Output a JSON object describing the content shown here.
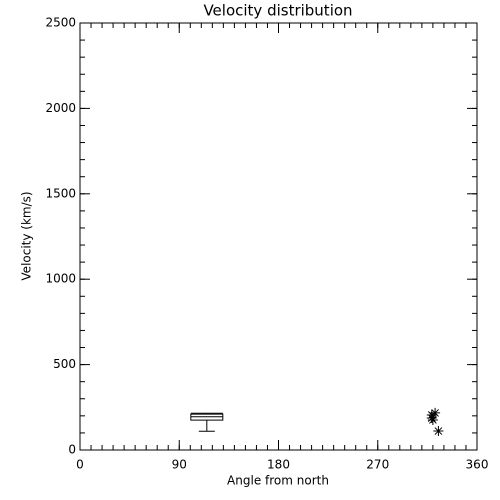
{
  "chart_data": {
    "type": "box",
    "title": "Velocity distribution",
    "xlabel": "Angle from north",
    "ylabel": "Velocity (km/s)",
    "xlim": [
      0,
      360
    ],
    "xticks": [
      0,
      90,
      180,
      270,
      360
    ],
    "xminor_step": 10,
    "ylim": [
      0,
      2500
    ],
    "yticks": [
      0,
      500,
      1000,
      1500,
      2000,
      2500
    ],
    "yminor_step": 100,
    "color": "#000000",
    "boxes": [
      {
        "x": 115,
        "min": 110,
        "q1": 175,
        "median": 195,
        "q3": 210,
        "max": 215
      }
    ],
    "points": {
      "x": [
        319,
        322,
        320,
        319,
        325
      ],
      "y": [
        205,
        217,
        176,
        187,
        111
      ]
    }
  }
}
